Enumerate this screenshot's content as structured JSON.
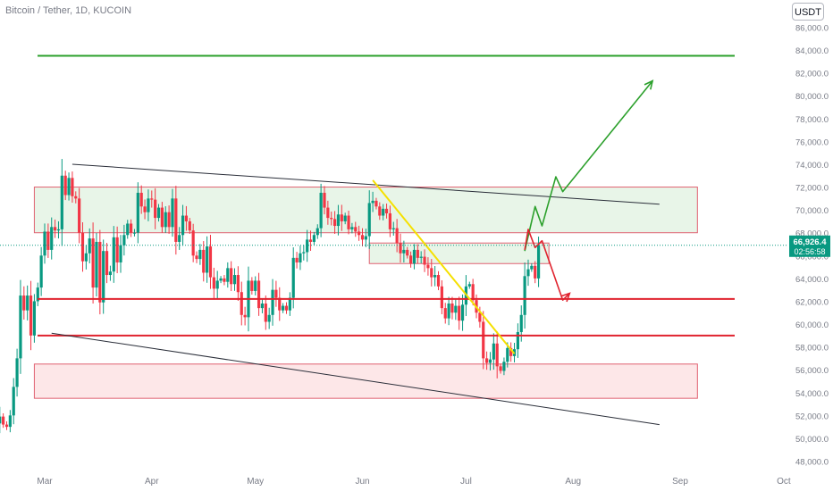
{
  "title": "Bitcoin / Tether, 1D, KUCOIN",
  "currency_button": "USDT",
  "price_label": {
    "price": "66,926.4",
    "countdown": "02:56:58",
    "color": "#089981"
  },
  "colors": {
    "up": "#089981",
    "down": "#f23645",
    "support_lines": "#e0232e",
    "resistance_line": "#2ca02c",
    "trendline_yellow": "#f5e000",
    "channel_lines": "#2a2e39",
    "green_zone": "rgba(76,175,80,0.13)",
    "red_zone": "rgba(242,54,69,0.12)",
    "zone_border": "#e06070",
    "projection_green": "#2ca02c",
    "projection_red": "#e0232e"
  },
  "chart_data": {
    "type": "candlestick",
    "symbol": "Bitcoin / Tether",
    "timeframe": "1D",
    "exchange": "KUCOIN",
    "x_ticks": [
      "Mar",
      "Apr",
      "May",
      "Jun",
      "Jul",
      "Aug",
      "Sep",
      "Oct"
    ],
    "x_tick_dates": [
      "2024-03-01",
      "2024-04-01",
      "2024-05-01",
      "2024-06-01",
      "2024-07-01",
      "2024-08-01",
      "2024-09-01",
      "2024-10-01"
    ],
    "x_range": [
      "2024-02-09",
      "2024-10-03"
    ],
    "y_ticks": [
      48000,
      50000,
      52000,
      54000,
      56000,
      58000,
      60000,
      62000,
      64000,
      66000,
      68000,
      70000,
      72000,
      74000,
      76000,
      78000,
      80000,
      82000,
      84000,
      86000
    ],
    "y_tick_labels": [
      "48,000.0",
      "50,000.0",
      "52,000.0",
      "54,000.0",
      "56,000.0",
      "58,000.0",
      "60,000.0",
      "62,000.0",
      "64,000.0",
      "66,000.0",
      "68,000.0",
      "70,000.0",
      "72,000.0",
      "74,000.0",
      "76,000.0",
      "78,000.0",
      "80,000.0",
      "82,000.0",
      "84,000.0",
      "86,000.0"
    ],
    "ylim": [
      46800,
      86000
    ],
    "start_date": "2024-02-09",
    "closes": [
      51800,
      51700,
      52000,
      51600,
      51900,
      52200,
      51700,
      51300,
      51900,
      51200,
      51000,
      52000,
      54500,
      57000,
      62500,
      61200,
      62500,
      59000,
      62000,
      63200,
      66000,
      68100,
      66500,
      68500,
      68200,
      68300,
      73000,
      71300,
      72800,
      71200,
      71000,
      68000,
      65500,
      66200,
      67500,
      63200,
      67200,
      61900,
      66400,
      64300,
      64600,
      67600,
      65400,
      66900,
      67800,
      68800,
      68000,
      68000,
      71500,
      70300,
      69800,
      71000,
      70900,
      69300,
      70200,
      68500,
      69800,
      68500,
      71000,
      67200,
      67800,
      69500,
      69000,
      68200,
      66000,
      65700,
      66500,
      64500,
      66800,
      64100,
      63100,
      63800,
      64000,
      63700,
      64900,
      63500,
      64300,
      62800,
      60800,
      60600,
      63800,
      62900,
      63800,
      61400,
      61800,
      60200,
      60800,
      63000,
      62300,
      61200,
      61600,
      61200,
      62300,
      65800,
      65400,
      66200,
      66300,
      67400,
      67200,
      67800,
      68400,
      71500,
      70200,
      69300,
      69200,
      68600,
      69600,
      69000,
      69500,
      68300,
      68500,
      68100,
      67800,
      67400,
      67700,
      70600,
      70800,
      70300,
      69500,
      70100,
      69700,
      68300,
      68400,
      67100,
      66200,
      66500,
      66000,
      65300,
      66500,
      65800,
      65900,
      65200,
      64900,
      64100,
      64300,
      63300,
      61400,
      60500,
      61800,
      61000,
      61600,
      60300,
      61700,
      63300,
      63500,
      62100,
      61000,
      60200,
      57000,
      56600,
      56900,
      58300,
      56300,
      55900,
      56700,
      57900,
      57200,
      57800,
      59300,
      60800,
      64200,
      64800,
      65100,
      64000,
      66900
    ],
    "series_annotations": {
      "horizontal_lines": [
        {
          "name": "resistance",
          "price": 83500,
          "color": "resistance_line"
        },
        {
          "name": "support-upper",
          "price": 62200,
          "color": "support_lines"
        },
        {
          "name": "support-lower",
          "price": 59000,
          "color": "support_lines"
        }
      ],
      "zones": [
        {
          "name": "upper-green-zone",
          "from_date": "2024-02-27",
          "to_date": "2024-09-06",
          "low": 68000,
          "high": 72000,
          "fill": "green_zone"
        },
        {
          "name": "mid-green-zone",
          "from_date": "2024-06-03",
          "to_date": "2024-07-25",
          "low": 65300,
          "high": 67100,
          "fill": "green_zone"
        },
        {
          "name": "lower-red-zone",
          "from_date": "2024-02-27",
          "to_date": "2024-09-06",
          "low": 53500,
          "high": 56500,
          "fill": "red_zone"
        }
      ],
      "trendlines": [
        {
          "name": "upper-channel-line",
          "points": [
            [
              "2024-03-09",
              74000
            ],
            [
              "2024-08-26",
              70500
            ]
          ],
          "color": "channel_lines"
        },
        {
          "name": "lower-channel-line",
          "points": [
            [
              "2024-03-03",
              59200
            ],
            [
              "2024-08-26",
              51200
            ]
          ],
          "color": "channel_lines"
        },
        {
          "name": "yellow-trendline",
          "points": [
            [
              "2024-06-04",
              72600
            ],
            [
              "2024-07-15",
              57400
            ]
          ],
          "color": "trendline_yellow"
        }
      ],
      "projections": [
        {
          "name": "bullish-projection",
          "color": "projection_green",
          "points": [
            [
              "2024-07-18",
              66400
            ],
            [
              "2024-07-21",
              70300
            ],
            [
              "2024-07-23",
              68600
            ],
            [
              "2024-07-27",
              72900
            ],
            [
              "2024-07-29",
              71600
            ],
            [
              "2024-08-24",
              81300
            ]
          ]
        },
        {
          "name": "bearish-projection",
          "color": "projection_red",
          "points": [
            [
              "2024-07-18",
              66500
            ],
            [
              "2024-07-19",
              68300
            ],
            [
              "2024-07-21",
              66700
            ],
            [
              "2024-07-23",
              67300
            ],
            [
              "2024-07-29",
              62100
            ],
            [
              "2024-07-31",
              62700
            ]
          ]
        }
      ]
    }
  }
}
